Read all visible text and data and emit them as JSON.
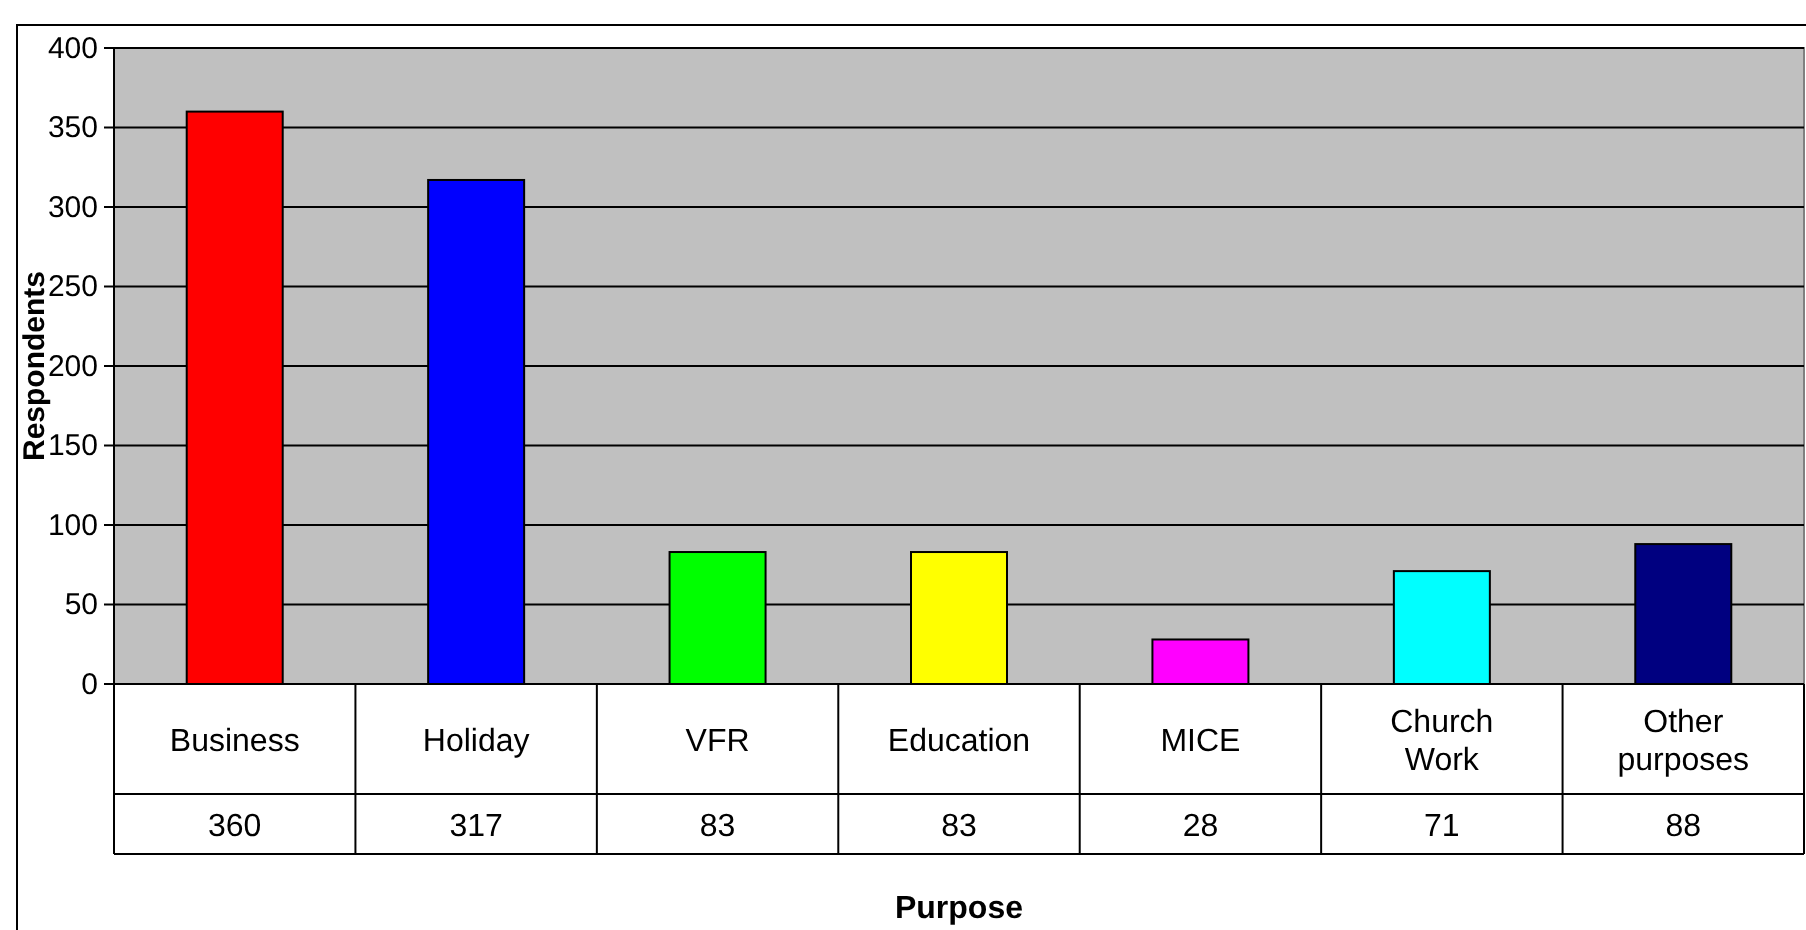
{
  "chart_data": {
    "type": "bar",
    "xlabel": "Purpose",
    "ylabel": "Respondents",
    "categories": [
      "Business",
      "Holiday",
      "VFR",
      "Education",
      "MICE",
      "Church Work",
      "Other purposes"
    ],
    "values": [
      360,
      317,
      83,
      83,
      28,
      71,
      88
    ],
    "colors": [
      "#ff0000",
      "#0000ff",
      "#00ff00",
      "#ffff00",
      "#ff00ff",
      "#00ffff",
      "#000080"
    ],
    "ylim": [
      0,
      400
    ],
    "yticks": [
      0,
      50,
      100,
      150,
      200,
      250,
      300,
      350,
      400
    ],
    "grid": "y",
    "data_labels": true
  }
}
